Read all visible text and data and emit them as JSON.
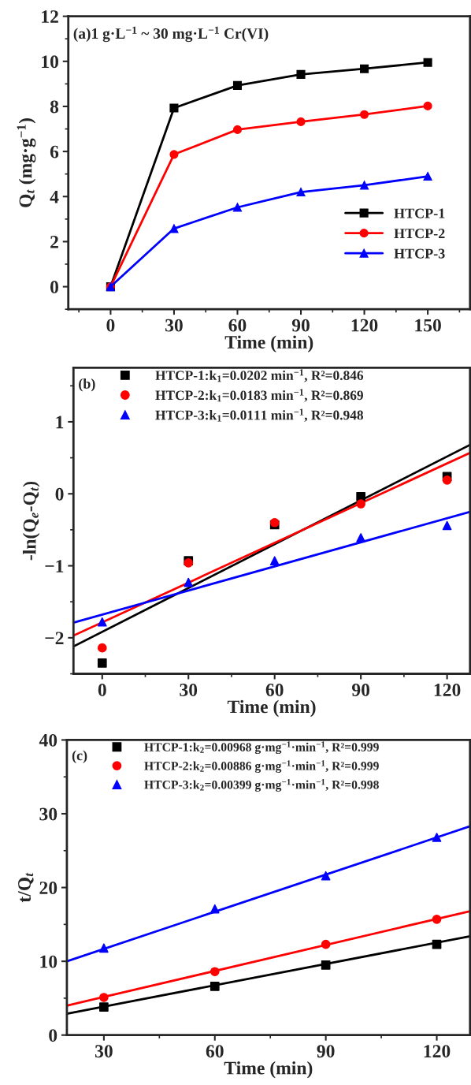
{
  "chart_data": [
    {
      "type": "line",
      "annotations": [
        "(a)1 g·L$^{−1}$ ~ 30 mg·L$^{−1}$ Cr(VI)"
      ],
      "xlabel": "Time (min)",
      "ylabel": "Q$_{t}$ (mg·g$^{−1}$)",
      "x": [
        0,
        30,
        60,
        90,
        120,
        150
      ],
      "xlim": [
        -20,
        170
      ],
      "xticks": [
        0,
        30,
        60,
        90,
        120,
        150
      ],
      "ylim": [
        -1,
        12
      ],
      "yticks": [
        0,
        2,
        4,
        6,
        8,
        10,
        12
      ],
      "legend": "bottom right",
      "series": [
        {
          "name": "HTCP-1",
          "color": "#000000",
          "marker": "square",
          "values": [
            0,
            7.93,
            8.93,
            9.42,
            9.67,
            9.95
          ]
        },
        {
          "name": "HTCP-2",
          "color": "#ff0000",
          "marker": "circle",
          "values": [
            0,
            5.87,
            6.97,
            7.32,
            7.64,
            8.02
          ]
        },
        {
          "name": "HTCP-3",
          "color": "#0000ff",
          "marker": "triangle",
          "values": [
            0,
            2.58,
            3.52,
            4.2,
            4.5,
            4.9
          ]
        }
      ]
    },
    {
      "type": "scatter",
      "annotations": [
        "(b)"
      ],
      "xlabel": "Time (min)",
      "ylabel": "-ln(Q$_{e}$-Q$_{t}$)",
      "x": [
        0,
        30,
        60,
        90,
        120
      ],
      "xlim": [
        -10,
        128
      ],
      "xticks": [
        0,
        30,
        60,
        90,
        120
      ],
      "ylim": [
        -2.5,
        1.75
      ],
      "yticks": [
        {
          "value": -2,
          "label": "−2"
        },
        {
          "value": -1,
          "label": "−1"
        },
        0,
        1
      ],
      "legend": "top left",
      "series": [
        {
          "name": "HTCP-1:k$_{1}$=0.0202 min$^{−1}$, R²=0.846",
          "color": "#000000",
          "marker": "square",
          "values": [
            -2.35,
            -0.93,
            -0.43,
            -0.04,
            0.24
          ]
        },
        {
          "name": "HTCP-2:k$_{1}$=0.0183 min$^{−1}$, R²=0.869",
          "color": "#ff0000",
          "marker": "circle",
          "values": [
            -2.14,
            -0.96,
            -0.4,
            -0.14,
            0.19
          ]
        },
        {
          "name": "HTCP-3:k$_{1}$=0.0111 min$^{−1}$, R²=0.948",
          "color": "#0000ff",
          "marker": "triangle",
          "values": [
            -1.78,
            -1.23,
            -0.93,
            -0.61,
            -0.44
          ]
        },
        {
          "type": "line",
          "color": "#000000",
          "x": [
            -10,
            128
          ],
          "values": [
            -2.12,
            0.68
          ]
        },
        {
          "type": "line",
          "color": "#ff0000",
          "x": [
            -10,
            128
          ],
          "values": [
            -1.97,
            0.57
          ]
        },
        {
          "type": "line",
          "color": "#0000ff",
          "x": [
            -10,
            128
          ],
          "values": [
            -1.79,
            -0.25
          ]
        }
      ]
    },
    {
      "type": "scatter",
      "annotations": [
        "(c)"
      ],
      "xlabel": "Time (min)",
      "ylabel": "t/Q$_{t}$",
      "x": [
        30,
        60,
        90,
        120
      ],
      "xlim": [
        20,
        129
      ],
      "xticks": [
        30,
        60,
        90,
        120
      ],
      "ylim": [
        0,
        40
      ],
      "yticks": [
        0,
        10,
        20,
        30,
        40
      ],
      "legend": "top left",
      "series": [
        {
          "name": "HTCP-1:k$_{2}$=0.00968 g·mg$^{−1}$·min$^{−1}$, R²=0.999",
          "color": "#000000",
          "marker": "square",
          "values": [
            3.8,
            6.6,
            9.5,
            12.3
          ]
        },
        {
          "name": "HTCP-2:k$_{2}$=0.00886 g·mg$^{−1}$·min$^{−1}$, R²=0.999",
          "color": "#ff0000",
          "marker": "circle",
          "values": [
            5.1,
            8.6,
            12.3,
            15.7
          ]
        },
        {
          "name": "HTCP-3:k$_{2}$=0.00399 g·mg$^{−1}$·min$^{−1}$, R²=0.998",
          "color": "#0000ff",
          "marker": "triangle",
          "values": [
            11.8,
            17.1,
            21.6,
            26.8
          ]
        },
        {
          "type": "line",
          "color": "#000000",
          "x": [
            20,
            129
          ],
          "values": [
            2.9,
            13.4
          ]
        },
        {
          "type": "line",
          "color": "#ff0000",
          "x": [
            20,
            129
          ],
          "values": [
            4.0,
            16.8
          ]
        },
        {
          "type": "line",
          "color": "#0000ff",
          "x": [
            20,
            129
          ],
          "values": [
            10.0,
            28.3
          ]
        }
      ]
    }
  ]
}
